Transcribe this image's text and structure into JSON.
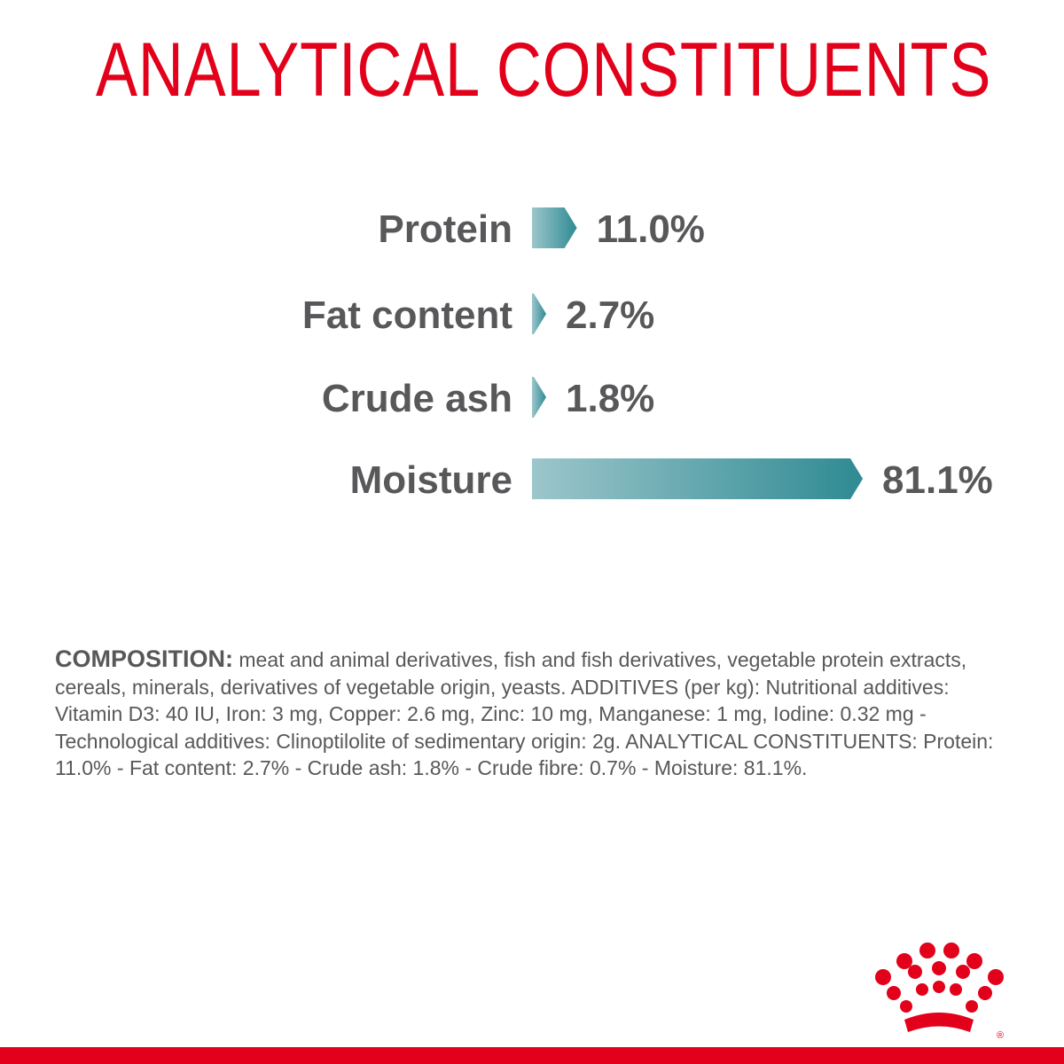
{
  "title": "ANALYTICAL CONSTITUENTS",
  "colors": {
    "brand_red": "#e2001a",
    "bar_light": "#9cc6cb",
    "bar_dark": "#2f8a93",
    "label_gray": "#58585a"
  },
  "chart_data": {
    "type": "bar",
    "orientation": "horizontal",
    "title": "ANALYTICAL CONSTITUENTS",
    "categories": [
      "Protein",
      "Fat content",
      "Crude ash",
      "Moisture"
    ],
    "values": [
      11.0,
      2.7,
      1.8,
      81.1
    ],
    "value_labels": [
      "11.0%",
      "2.7%",
      "1.8%",
      "81.1%"
    ],
    "unit": "%",
    "grid": false,
    "legend": "none"
  },
  "composition": {
    "label": "COMPOSITION:",
    "text": "meat and animal derivatives, fish and fish derivatives, vegetable protein extracts, cereals, minerals, derivatives of vegetable origin, yeasts. ADDITIVES (per kg): Nutritional additives: Vitamin D3: 40 IU, Iron: 3 mg, Copper: 2.6 mg, Zinc: 10 mg, Manganese: 1 mg, Iodine: 0.32 mg - Technological additives: Clinoptilolite of sedimentary origin: 2g. ANALYTICAL CONSTITUENTS: Protein: 11.0% - Fat content: 2.7% - Crude ash: 1.8% - Crude fibre: 0.7% - Moisture: 81.1%."
  },
  "logo": {
    "icon": "crown-logo-icon",
    "registered_mark": "®"
  }
}
